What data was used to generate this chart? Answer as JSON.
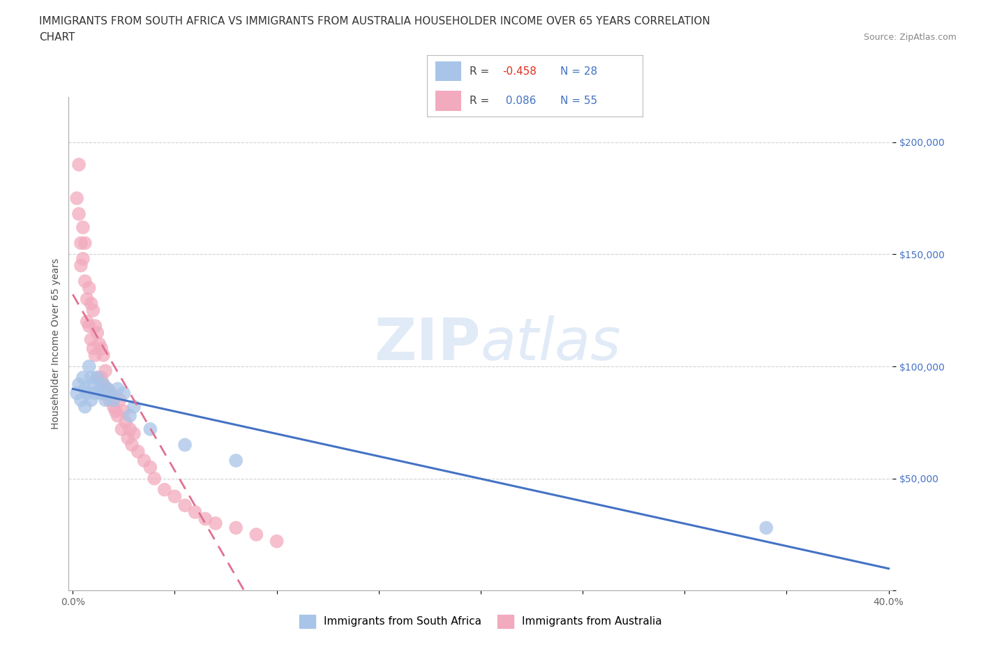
{
  "title_line1": "IMMIGRANTS FROM SOUTH AFRICA VS IMMIGRANTS FROM AUSTRALIA HOUSEHOLDER INCOME OVER 65 YEARS CORRELATION",
  "title_line2": "CHART",
  "source": "Source: ZipAtlas.com",
  "ylabel": "Householder Income Over 65 years",
  "xlim": [
    -0.002,
    0.402
  ],
  "ylim": [
    0,
    220000
  ],
  "xticks": [
    0.0,
    0.05,
    0.1,
    0.15,
    0.2,
    0.25,
    0.3,
    0.35,
    0.4
  ],
  "xticklabels": [
    "0.0%",
    "",
    "",
    "",
    "",
    "",
    "",
    "",
    "40.0%"
  ],
  "yticks": [
    0,
    50000,
    100000,
    150000,
    200000
  ],
  "yticklabels": [
    "",
    "$50,000",
    "$100,000",
    "$150,000",
    "$200,000"
  ],
  "watermark_zip": "ZIP",
  "watermark_atlas": "atlas",
  "color_south_africa": "#a8c4e8",
  "color_australia": "#f2aabe",
  "color_line_south_africa": "#4472c4",
  "color_line_australia": "#e07090",
  "south_africa_x": [
    0.002,
    0.003,
    0.004,
    0.005,
    0.006,
    0.006,
    0.007,
    0.008,
    0.009,
    0.009,
    0.01,
    0.011,
    0.012,
    0.013,
    0.014,
    0.015,
    0.016,
    0.017,
    0.018,
    0.02,
    0.022,
    0.025,
    0.028,
    0.03,
    0.038,
    0.055,
    0.08,
    0.34
  ],
  "south_africa_y": [
    88000,
    92000,
    85000,
    95000,
    90000,
    82000,
    88000,
    100000,
    95000,
    85000,
    92000,
    88000,
    95000,
    90000,
    88000,
    92000,
    85000,
    90000,
    88000,
    85000,
    90000,
    88000,
    78000,
    82000,
    72000,
    65000,
    58000,
    28000
  ],
  "australia_x": [
    0.002,
    0.003,
    0.003,
    0.004,
    0.004,
    0.005,
    0.005,
    0.006,
    0.006,
    0.007,
    0.007,
    0.008,
    0.008,
    0.009,
    0.009,
    0.01,
    0.01,
    0.011,
    0.011,
    0.012,
    0.012,
    0.013,
    0.014,
    0.014,
    0.015,
    0.015,
    0.016,
    0.016,
    0.017,
    0.018,
    0.019,
    0.02,
    0.021,
    0.022,
    0.023,
    0.024,
    0.025,
    0.026,
    0.027,
    0.028,
    0.029,
    0.03,
    0.032,
    0.035,
    0.038,
    0.04,
    0.045,
    0.05,
    0.055,
    0.06,
    0.065,
    0.07,
    0.08,
    0.09,
    0.1
  ],
  "australia_y": [
    175000,
    190000,
    168000,
    155000,
    145000,
    162000,
    148000,
    138000,
    155000,
    130000,
    120000,
    135000,
    118000,
    128000,
    112000,
    125000,
    108000,
    118000,
    105000,
    115000,
    95000,
    110000,
    108000,
    95000,
    105000,
    92000,
    98000,
    88000,
    90000,
    85000,
    88000,
    82000,
    80000,
    78000,
    85000,
    72000,
    80000,
    75000,
    68000,
    72000,
    65000,
    70000,
    62000,
    58000,
    55000,
    50000,
    45000,
    42000,
    38000,
    35000,
    32000,
    30000,
    28000,
    25000,
    22000
  ],
  "grid_color": "#cccccc",
  "background_color": "#ffffff",
  "title_fontsize": 11,
  "axis_fontsize": 10,
  "tick_fontsize": 10,
  "legend_fontsize": 11
}
